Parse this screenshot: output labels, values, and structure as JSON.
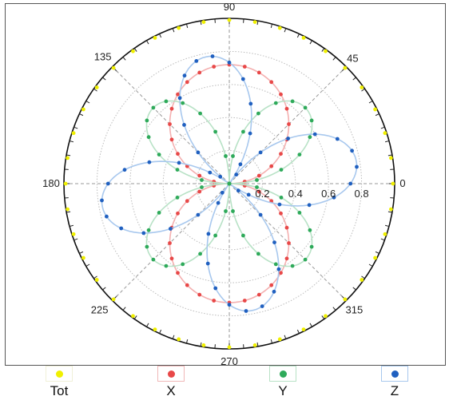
{
  "chart_data": {
    "type": "polar-scatter",
    "angle_ticks": [
      "0",
      "45",
      "90",
      "135",
      "180",
      "225",
      "270",
      "315"
    ],
    "angle_tick_values": [
      0,
      45,
      90,
      135,
      180,
      225,
      270,
      315
    ],
    "radial_ticks": [
      "0.2",
      "0.4",
      "0.6",
      "0.8"
    ],
    "radial_tick_values": [
      0.2,
      0.4,
      0.6,
      0.8
    ],
    "rmax": 1.0,
    "grid": true,
    "legend_position": "bottom",
    "series": [
      {
        "name": "Tot",
        "color": "#f0f000",
        "line": false,
        "model": "constant",
        "value": 0.99,
        "theta_step_deg": 9
      },
      {
        "name": "X",
        "color": "#e84848",
        "line": true,
        "line_color": "#f4b0b0",
        "model": "abs_sin",
        "value": 0.72,
        "theta_step_deg": 7.5
      },
      {
        "name": "Y",
        "color": "#2eaa5a",
        "line": true,
        "line_color": "#b8e2c6",
        "model": "abs_sin_2theta",
        "value": 0.65,
        "theta_step_deg": 7.5
      },
      {
        "name": "Z",
        "color": "#2060c0",
        "line": true,
        "line_color": "#a8c8ee",
        "model": "abs_sin_2theta_rot",
        "value": 0.78,
        "theta_step_deg": 7.5
      }
    ]
  },
  "legend": {
    "items": [
      {
        "label": "Tot",
        "color": "#f0f000",
        "box_border": "#f0f0d8"
      },
      {
        "label": "X",
        "color": "#e84848",
        "box_border": "#f0b8b8"
      },
      {
        "label": "Y",
        "color": "#2eaa5a",
        "box_border": "#b8e2c6"
      },
      {
        "label": "Z",
        "color": "#2060c0",
        "box_border": "#a8c8ee"
      }
    ]
  }
}
